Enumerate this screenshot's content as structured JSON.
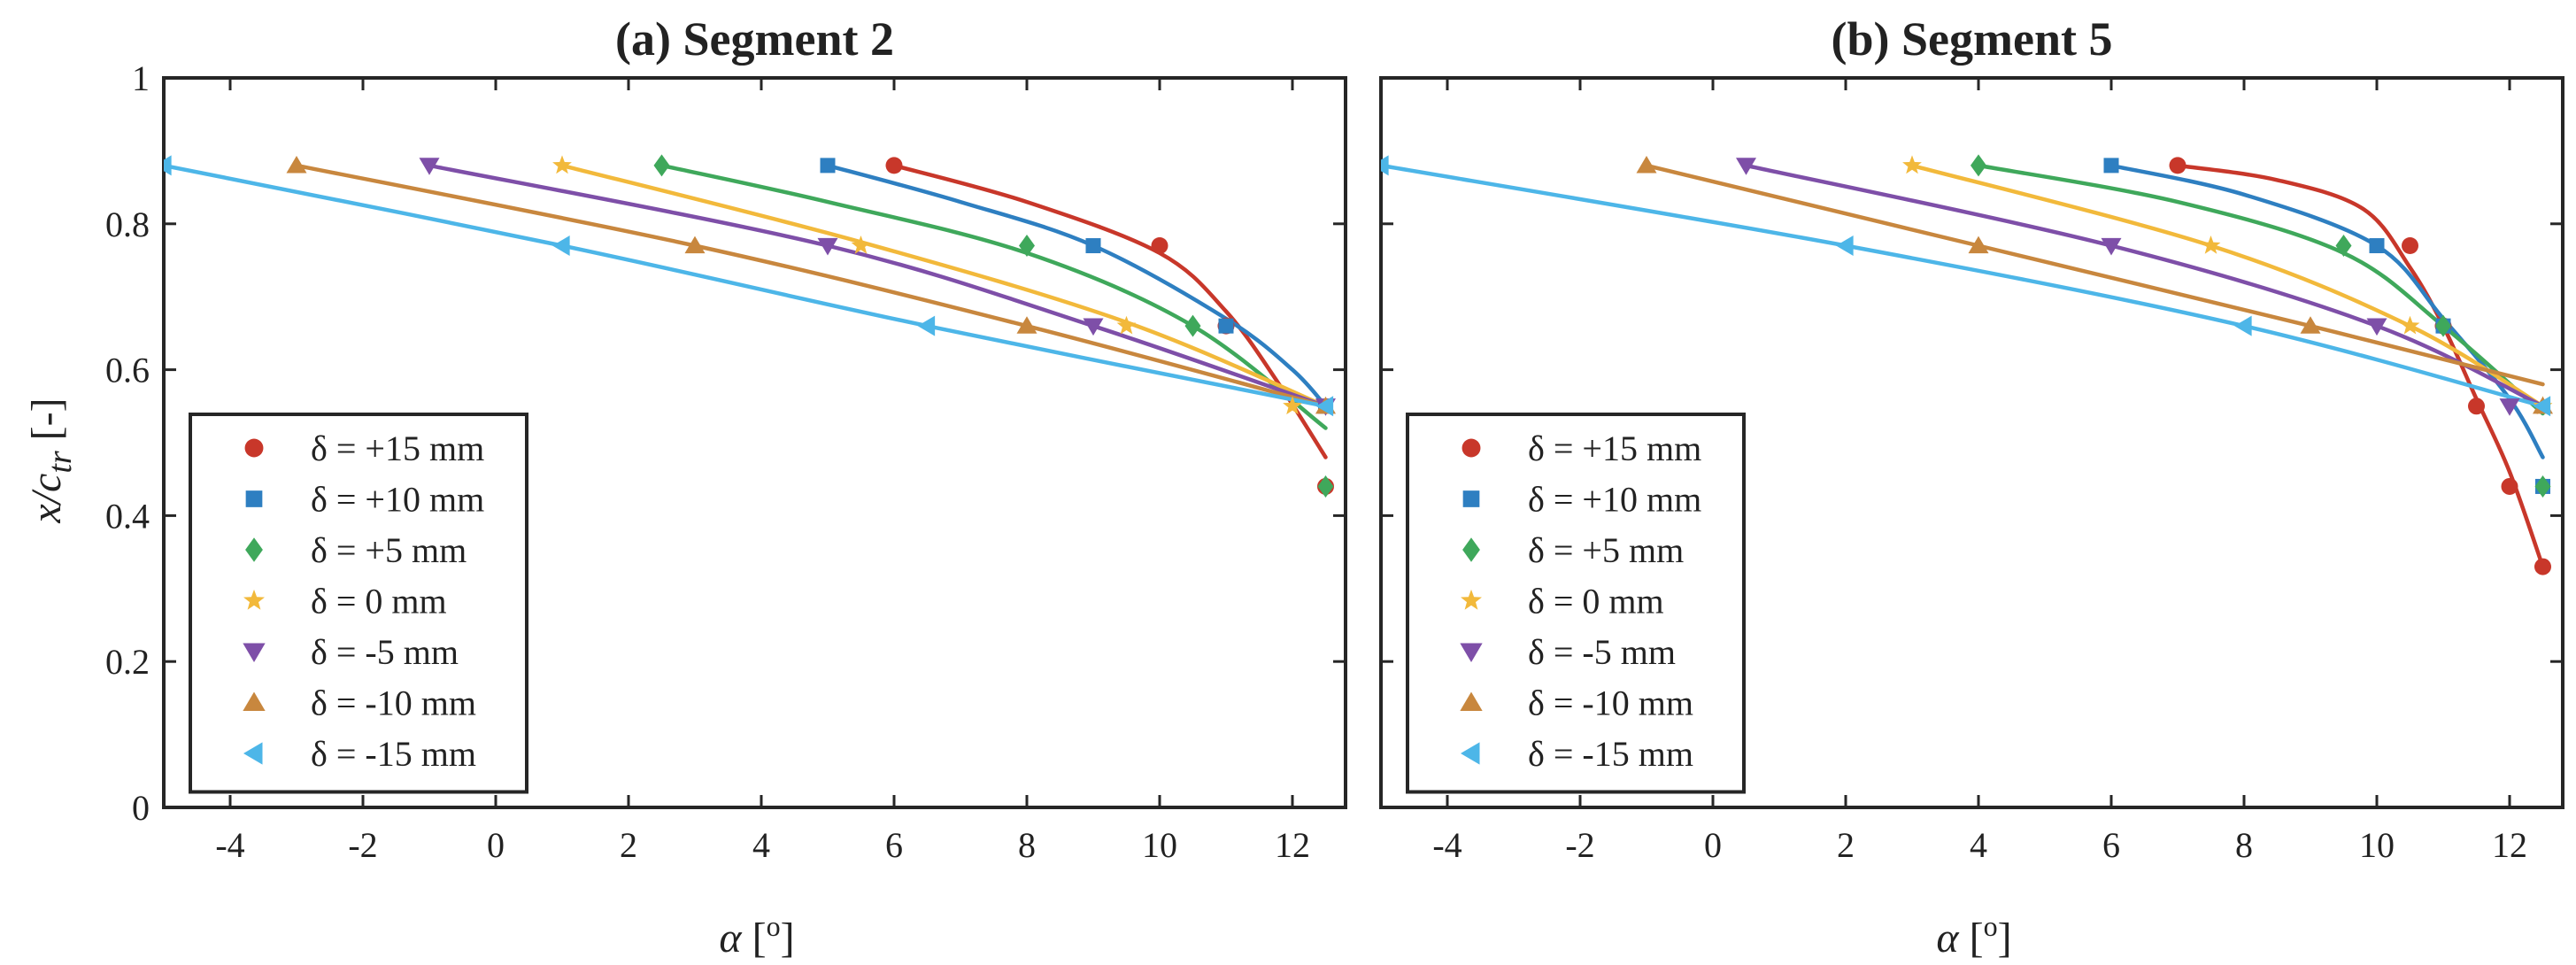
{
  "figure": {
    "ylabel": "x/c",
    "ylabel_sub": "tr",
    "ylabel_unit": " [-]",
    "xlabel": "α",
    "xlabel_unit_open": " [",
    "xlabel_unit_sup": "o",
    "xlabel_unit_close": "]"
  },
  "chart_data": [
    {
      "type": "scatter",
      "title": "(a) Segment 2",
      "xlim": [
        -5,
        12.8
      ],
      "ylim": [
        0,
        1
      ],
      "xticks": [
        -4,
        -2,
        0,
        2,
        4,
        6,
        8,
        10,
        12
      ],
      "yticks": [
        0,
        0.2,
        0.4,
        0.6,
        0.8,
        1
      ],
      "ytick_labels": [
        "0",
        "0.2",
        "0.4",
        "0.6",
        "0.8",
        "1"
      ],
      "legend_position": "bottom-left",
      "series": [
        {
          "name": "δ = +15 mm",
          "marker": "circle",
          "color": "#c8372a",
          "x": [
            6,
            10,
            11,
            12.5
          ],
          "y": [
            0.88,
            0.77,
            0.66,
            0.44
          ],
          "fit_x": [
            6,
            8,
            10,
            11,
            11.8,
            12.5
          ],
          "fit_y": [
            0.88,
            0.83,
            0.76,
            0.68,
            0.58,
            0.48
          ]
        },
        {
          "name": "δ = +10 mm",
          "marker": "square",
          "color": "#2e7fc1",
          "x": [
            5,
            9,
            11,
            12.5
          ],
          "y": [
            0.88,
            0.77,
            0.66,
            0.55
          ],
          "fit_x": [
            5,
            7,
            9,
            11,
            12,
            12.5
          ],
          "fit_y": [
            0.88,
            0.83,
            0.77,
            0.67,
            0.6,
            0.55
          ]
        },
        {
          "name": "δ = +5 mm",
          "marker": "diamond",
          "color": "#3fa85b",
          "x": [
            2.5,
            8,
            10.5,
            12.5
          ],
          "y": [
            0.88,
            0.77,
            0.66,
            0.44
          ],
          "fit_x": [
            2.5,
            5,
            8,
            10.5,
            12.5
          ],
          "fit_y": [
            0.88,
            0.83,
            0.76,
            0.66,
            0.52
          ]
        },
        {
          "name": "δ = 0 mm",
          "marker": "star",
          "color": "#f2b93b",
          "x": [
            1,
            5.5,
            9.5,
            12
          ],
          "y": [
            0.88,
            0.77,
            0.66,
            0.55
          ],
          "fit_x": [
            1,
            5.5,
            9.5,
            12.5
          ],
          "fit_y": [
            0.88,
            0.775,
            0.665,
            0.55
          ]
        },
        {
          "name": "δ = -5 mm",
          "marker": "triangle-down",
          "color": "#7e4fa8",
          "x": [
            -1,
            5,
            9,
            12.5
          ],
          "y": [
            0.88,
            0.77,
            0.66,
            0.55
          ],
          "fit_x": [
            -1,
            5,
            9,
            12.5
          ],
          "fit_y": [
            0.88,
            0.77,
            0.66,
            0.55
          ]
        },
        {
          "name": "δ = -10 mm",
          "marker": "triangle-up",
          "color": "#c8873e",
          "x": [
            -3,
            3,
            8,
            12.5
          ],
          "y": [
            0.88,
            0.77,
            0.66,
            0.55
          ],
          "fit_x": [
            -3,
            3,
            8,
            12.5
          ],
          "fit_y": [
            0.88,
            0.77,
            0.66,
            0.55
          ]
        },
        {
          "name": "δ = -15 mm",
          "marker": "triangle-left",
          "color": "#4db6e8",
          "x": [
            -5,
            1,
            6.5,
            12.5
          ],
          "y": [
            0.88,
            0.77,
            0.66,
            0.55
          ],
          "fit_x": [
            -5,
            1,
            6.5,
            12.5
          ],
          "fit_y": [
            0.88,
            0.77,
            0.66,
            0.55
          ]
        }
      ]
    },
    {
      "type": "scatter",
      "title": "(b) Segment 5",
      "xlim": [
        -5,
        12.8
      ],
      "ylim": [
        0,
        1
      ],
      "xticks": [
        -4,
        -2,
        0,
        2,
        4,
        6,
        8,
        10,
        12
      ],
      "yticks": [
        0,
        0.2,
        0.4,
        0.6,
        0.8,
        1
      ],
      "ytick_labels": [
        "",
        "",
        "",
        "",
        "",
        ""
      ],
      "legend_position": "bottom-left",
      "series": [
        {
          "name": "δ = +15 mm",
          "marker": "circle",
          "color": "#c8372a",
          "x": [
            7,
            10.5,
            11,
            11.5,
            12,
            12.5
          ],
          "y": [
            0.88,
            0.77,
            0.66,
            0.55,
            0.44,
            0.33
          ],
          "fit_x": [
            7,
            8.5,
            9.8,
            10.5,
            11,
            11.5,
            12,
            12.5
          ],
          "fit_y": [
            0.88,
            0.86,
            0.82,
            0.74,
            0.66,
            0.56,
            0.46,
            0.33
          ]
        },
        {
          "name": "δ = +10 mm",
          "marker": "square",
          "color": "#2e7fc1",
          "x": [
            6,
            10,
            11,
            12.5
          ],
          "y": [
            0.88,
            0.77,
            0.66,
            0.44
          ],
          "fit_x": [
            6,
            8,
            10,
            11,
            12,
            12.5
          ],
          "fit_y": [
            0.88,
            0.84,
            0.77,
            0.67,
            0.56,
            0.48
          ]
        },
        {
          "name": "δ = +5 mm",
          "marker": "diamond",
          "color": "#3fa85b",
          "x": [
            4,
            9.5,
            11,
            12.5
          ],
          "y": [
            0.88,
            0.77,
            0.66,
            0.44
          ],
          "fit_x": [
            4,
            7,
            9.5,
            11,
            12.5
          ],
          "fit_y": [
            0.88,
            0.83,
            0.76,
            0.66,
            0.54
          ]
        },
        {
          "name": "δ = 0 mm",
          "marker": "star",
          "color": "#f2b93b",
          "x": [
            3,
            7.5,
            10.5,
            12.5
          ],
          "y": [
            0.88,
            0.77,
            0.66,
            0.55
          ],
          "fit_x": [
            3,
            7.5,
            10.5,
            12.5
          ],
          "fit_y": [
            0.88,
            0.77,
            0.66,
            0.55
          ]
        },
        {
          "name": "δ = -5 mm",
          "marker": "triangle-down",
          "color": "#7e4fa8",
          "x": [
            0.5,
            6,
            10,
            12
          ],
          "y": [
            0.88,
            0.77,
            0.66,
            0.55
          ],
          "fit_x": [
            0.5,
            6,
            10,
            12.5
          ],
          "fit_y": [
            0.88,
            0.77,
            0.66,
            0.55
          ]
        },
        {
          "name": "δ = -10 mm",
          "marker": "triangle-up",
          "color": "#c8873e",
          "x": [
            -1,
            4,
            9,
            12.5
          ],
          "y": [
            0.88,
            0.77,
            0.66,
            0.55
          ],
          "fit_x": [
            -1,
            4,
            9,
            12.5
          ],
          "fit_y": [
            0.88,
            0.77,
            0.66,
            0.58
          ]
        },
        {
          "name": "δ = -15 mm",
          "marker": "triangle-left",
          "color": "#4db6e8",
          "x": [
            -5,
            2,
            8,
            12.5
          ],
          "y": [
            0.88,
            0.77,
            0.66,
            0.55
          ],
          "fit_x": [
            -5,
            2,
            8,
            12.5
          ],
          "fit_y": [
            0.88,
            0.77,
            0.66,
            0.55
          ]
        }
      ]
    }
  ]
}
